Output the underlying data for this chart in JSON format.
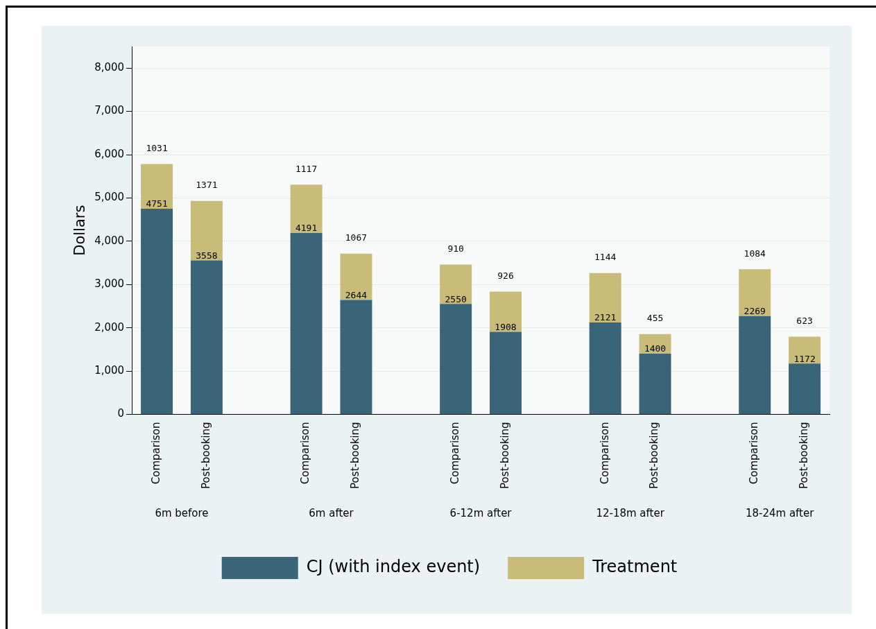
{
  "chart_data": {
    "type": "bar",
    "stacked": true,
    "ylabel": "Dollars",
    "categories": [
      "Comparison",
      "Post-booking",
      null,
      "Comparison",
      "Post-booking",
      null,
      "Comparison",
      "Post-booking",
      null,
      "Comparison",
      "Post-booking",
      null,
      "Comparison",
      "Post-booking"
    ],
    "series": [
      {
        "name": "CJ (with index event)",
        "color": "#3a6478",
        "values": [
          4751,
          3558,
          null,
          4191,
          2644,
          null,
          2550,
          1908,
          null,
          2121,
          1400,
          null,
          2269,
          1172
        ]
      },
      {
        "name": "Treatment",
        "color": "#c8bc78",
        "values": [
          1031,
          1371,
          null,
          1117,
          1067,
          null,
          910,
          926,
          null,
          1144,
          455,
          null,
          1084,
          623
        ]
      }
    ],
    "annotations": [
      "6m before",
      "6m after",
      "6-12m after",
      "12-18m after",
      "18-24m after"
    ],
    "ylim": [
      0,
      8500
    ],
    "yticks": [
      {
        "value": 0,
        "label": "0"
      },
      {
        "value": 1000,
        "label": "1,000"
      },
      {
        "value": 2000,
        "label": "2,000"
      },
      {
        "value": 3000,
        "label": "3,000"
      },
      {
        "value": 4000,
        "label": "4,000"
      },
      {
        "value": 5000,
        "label": "5,000"
      },
      {
        "value": 6000,
        "label": "6,000"
      },
      {
        "value": 7000,
        "label": "7,000"
      },
      {
        "value": 8000,
        "label": "8,000"
      }
    ],
    "grid": "y",
    "legend": "bottom",
    "data_labels": true
  }
}
